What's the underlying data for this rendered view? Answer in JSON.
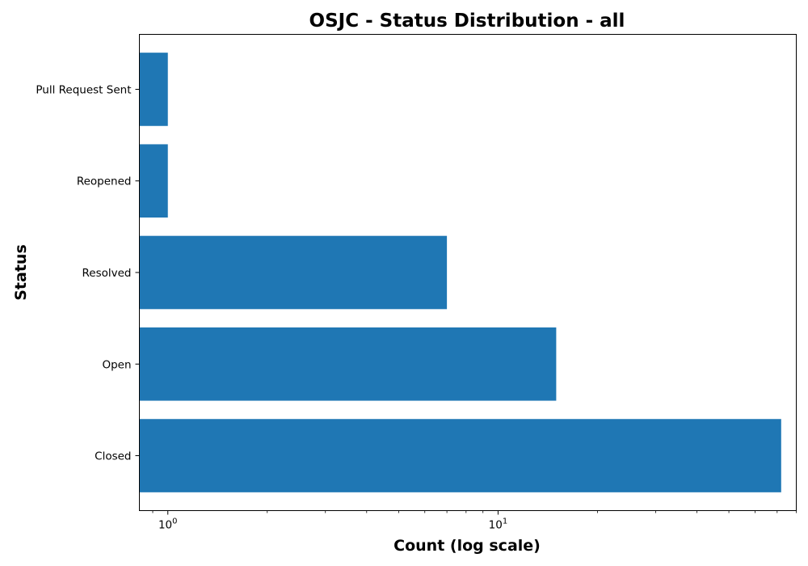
{
  "chart_data": {
    "type": "bar",
    "orientation": "horizontal",
    "title": "OSJC - Status Distribution - all",
    "xlabel": "Count (log scale)",
    "ylabel": "Status",
    "x_scale": "log",
    "xlim": [
      0.82,
      80
    ],
    "x_ticks": [
      {
        "value": 1,
        "base": "10",
        "exp": "0"
      },
      {
        "value": 10,
        "base": "10",
        "exp": "1"
      }
    ],
    "categories": [
      "Closed",
      "Open",
      "Resolved",
      "Reopened",
      "Pull Request Sent"
    ],
    "values": [
      72,
      15,
      7,
      1,
      1
    ],
    "bar_color": "#1f77b4",
    "grid": false,
    "legend": "none"
  }
}
